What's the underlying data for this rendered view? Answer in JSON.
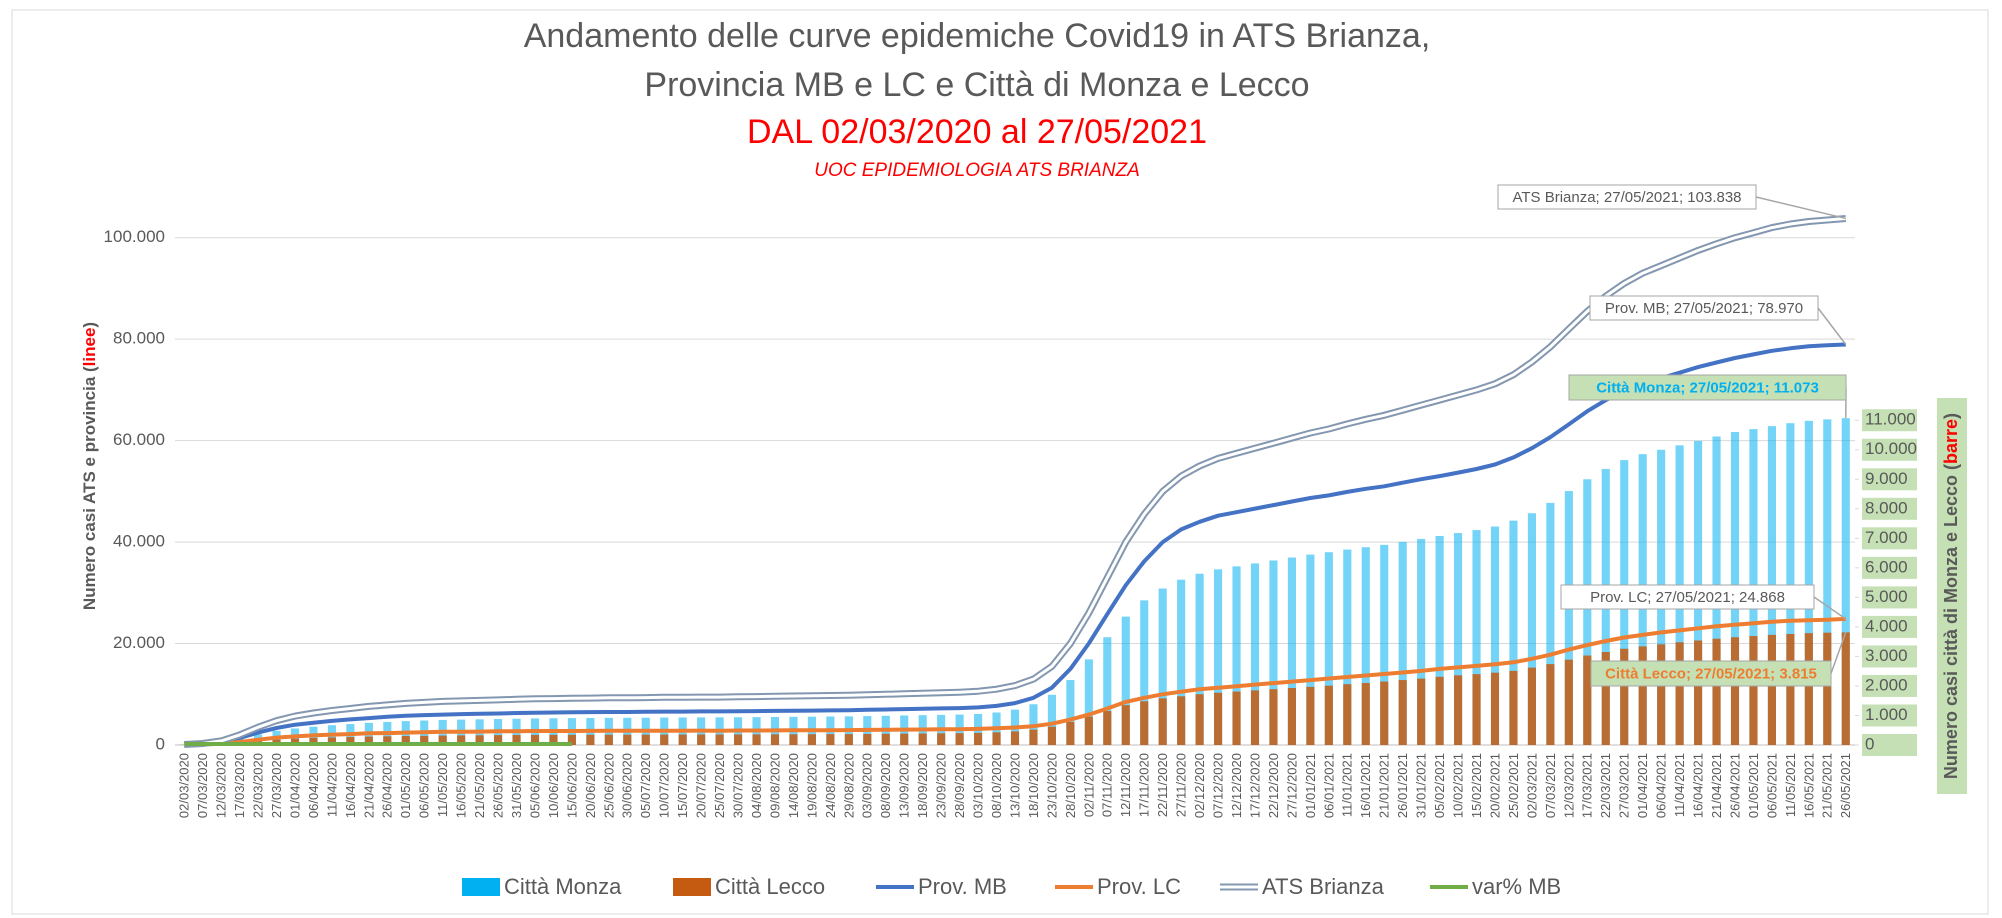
{
  "chart_data": {
    "type": "combo",
    "title": "Andamento delle curve epidemiche Covid19 in ATS Brianza,",
    "title_line2": "Provincia MB e LC e Città di Monza e Lecco",
    "subtitle": "DAL 02/03/2020 al 27/05/2021",
    "note": "UOC EPIDEMIOLOGIA ATS BRIANZA",
    "y_label": [
      "Numero casi ATS e  provincia (",
      "linee",
      ")"
    ],
    "y2_label": [
      "Numero casi città di Monza e Lecco (",
      "barre",
      ")"
    ],
    "categories": [
      "02/03/2020",
      "07/03/2020",
      "12/03/2020",
      "17/03/2020",
      "22/03/2020",
      "27/03/2020",
      "01/04/2020",
      "06/04/2020",
      "11/04/2020",
      "16/04/2020",
      "21/04/2020",
      "26/04/2020",
      "01/05/2020",
      "06/05/2020",
      "11/05/2020",
      "16/05/2020",
      "21/05/2020",
      "26/05/2020",
      "31/05/2020",
      "05/06/2020",
      "10/06/2020",
      "15/06/2020",
      "20/06/2020",
      "25/06/2020",
      "30/06/2020",
      "05/07/2020",
      "10/07/2020",
      "15/07/2020",
      "20/07/2020",
      "25/07/2020",
      "30/07/2020",
      "04/08/2020",
      "09/08/2020",
      "14/08/2020",
      "19/08/2020",
      "24/08/2020",
      "29/08/2020",
      "03/09/2020",
      "08/09/2020",
      "13/09/2020",
      "18/09/2020",
      "23/09/2020",
      "28/09/2020",
      "03/10/2020",
      "08/10/2020",
      "13/10/2020",
      "18/10/2020",
      "23/10/2020",
      "28/10/2020",
      "02/11/2020",
      "07/11/2020",
      "12/11/2020",
      "17/11/2020",
      "22/11/2020",
      "27/11/2020",
      "02/12/2020",
      "07/12/2020",
      "12/12/2020",
      "17/12/2020",
      "22/12/2020",
      "27/12/2020",
      "01/01/2021",
      "06/01/2021",
      "11/01/2021",
      "16/01/2021",
      "21/01/2021",
      "26/01/2021",
      "31/01/2021",
      "05/02/2021",
      "10/02/2021",
      "15/02/2021",
      "20/02/2021",
      "25/02/2021",
      "02/03/2021",
      "07/03/2021",
      "12/03/2021",
      "17/03/2021",
      "22/03/2021",
      "27/03/2021",
      "01/04/2021",
      "06/04/2021",
      "11/04/2021",
      "16/04/2021",
      "21/04/2021",
      "26/04/2021",
      "01/05/2021",
      "06/05/2021",
      "11/05/2021",
      "16/05/2021",
      "21/05/2021",
      "26/05/2021"
    ],
    "series": [
      {
        "name": "Città Monza",
        "type": "bar",
        "axis": "y2",
        "color": "#00b0f0",
        "values": [
          10,
          30,
          80,
          200,
          360,
          480,
          560,
          620,
          670,
          710,
          750,
          780,
          810,
          830,
          850,
          860,
          870,
          880,
          890,
          900,
          905,
          910,
          915,
          920,
          922,
          925,
          930,
          932,
          935,
          937,
          940,
          945,
          950,
          955,
          960,
          965,
          970,
          980,
          990,
          1000,
          1010,
          1020,
          1030,
          1050,
          1100,
          1200,
          1380,
          1700,
          2200,
          2900,
          3650,
          4350,
          4900,
          5300,
          5600,
          5800,
          5950,
          6050,
          6150,
          6250,
          6350,
          6450,
          6530,
          6620,
          6700,
          6780,
          6880,
          6980,
          7080,
          7180,
          7280,
          7400,
          7600,
          7850,
          8200,
          8600,
          9000,
          9350,
          9650,
          9850,
          10000,
          10150,
          10300,
          10450,
          10600,
          10700,
          10800,
          10900,
          10980,
          11030,
          11070
        ]
      },
      {
        "name": "Città Lecco",
        "type": "bar",
        "axis": "y2",
        "color": "#c55a11",
        "values": [
          5,
          12,
          30,
          75,
          130,
          180,
          215,
          240,
          255,
          270,
          285,
          295,
          305,
          310,
          320,
          325,
          330,
          335,
          340,
          342,
          344,
          346,
          348,
          350,
          351,
          352,
          354,
          355,
          356,
          357,
          358,
          360,
          362,
          364,
          366,
          368,
          370,
          375,
          380,
          385,
          390,
          395,
          400,
          410,
          430,
          460,
          520,
          620,
          780,
          960,
          1150,
          1350,
          1480,
          1580,
          1650,
          1720,
          1770,
          1810,
          1850,
          1890,
          1930,
          1970,
          2010,
          2060,
          2100,
          2150,
          2200,
          2250,
          2310,
          2360,
          2400,
          2450,
          2510,
          2620,
          2740,
          2890,
          3030,
          3150,
          3260,
          3340,
          3410,
          3480,
          3540,
          3600,
          3650,
          3690,
          3730,
          3760,
          3790,
          3805,
          3815
        ]
      },
      {
        "name": "Prov. MB",
        "type": "line",
        "color": "#4472c4",
        "values": [
          70,
          210,
          560,
          1400,
          2450,
          3350,
          4000,
          4400,
          4750,
          5050,
          5300,
          5550,
          5750,
          5900,
          6000,
          6100,
          6150,
          6200,
          6300,
          6350,
          6400,
          6450,
          6480,
          6500,
          6510,
          6540,
          6580,
          6590,
          6620,
          6630,
          6650,
          6690,
          6720,
          6760,
          6790,
          6830,
          6860,
          6930,
          7000,
          7070,
          7140,
          7210,
          7280,
          7420,
          7700,
          8250,
          9300,
          11300,
          15000,
          20000,
          25800,
          31500,
          36200,
          40000,
          42500,
          44000,
          45200,
          45900,
          46600,
          47300,
          48000,
          48700,
          49200,
          49900,
          50500,
          51000,
          51700,
          52400,
          53000,
          53700,
          54400,
          55300,
          56700,
          58500,
          60700,
          63200,
          65800,
          68000,
          69800,
          71300,
          72300,
          73400,
          74500,
          75400,
          76300,
          77000,
          77700,
          78200,
          78600,
          78800,
          78950
        ]
      },
      {
        "name": "Prov. LC",
        "type": "line",
        "color": "#ed7d31",
        "values": [
          30,
          90,
          240,
          600,
          1050,
          1450,
          1700,
          1900,
          2050,
          2150,
          2300,
          2350,
          2450,
          2500,
          2600,
          2600,
          2650,
          2700,
          2700,
          2750,
          2750,
          2750,
          2770,
          2800,
          2790,
          2810,
          2820,
          2810,
          2830,
          2820,
          2850,
          2860,
          2880,
          2890,
          2910,
          2920,
          2940,
          2970,
          3000,
          3030,
          3060,
          3090,
          3120,
          3180,
          3300,
          3450,
          3700,
          4200,
          5000,
          6000,
          7200,
          8500,
          9300,
          10000,
          10500,
          11000,
          11300,
          11600,
          11900,
          12200,
          12500,
          12800,
          13100,
          13400,
          13700,
          14000,
          14300,
          14600,
          15000,
          15300,
          15600,
          15900,
          16300,
          17000,
          17800,
          18800,
          19700,
          20500,
          21200,
          21700,
          22200,
          22600,
          23000,
          23400,
          23700,
          24000,
          24300,
          24500,
          24600,
          24700,
          24850
        ]
      },
      {
        "name": "ATS Brianza",
        "type": "line",
        "style": "double",
        "color": "#8497b0",
        "values": [
          100,
          300,
          800,
          2000,
          3500,
          4800,
          5700,
          6300,
          6800,
          7200,
          7600,
          7900,
          8200,
          8400,
          8600,
          8700,
          8800,
          8900,
          9000,
          9100,
          9150,
          9200,
          9250,
          9300,
          9300,
          9350,
          9400,
          9400,
          9450,
          9450,
          9500,
          9550,
          9600,
          9650,
          9700,
          9750,
          9800,
          9900,
          10000,
          10100,
          10200,
          10300,
          10400,
          10600,
          11000,
          11700,
          13000,
          15500,
          20000,
          26000,
          33000,
          40000,
          45500,
          50000,
          53000,
          55000,
          56500,
          57500,
          58500,
          59500,
          60500,
          61500,
          62300,
          63300,
          64200,
          65000,
          66000,
          67000,
          68000,
          69000,
          70000,
          71200,
          73000,
          75500,
          78500,
          82000,
          85500,
          88500,
          91000,
          93000,
          94500,
          96000,
          97500,
          98800,
          100000,
          101000,
          102000,
          102700,
          103200,
          103500,
          103800
        ]
      },
      {
        "name": "var% MB",
        "type": "line",
        "color": "#70ad47",
        "values": [
          200,
          200,
          200,
          200,
          200,
          200,
          200,
          200,
          200,
          200,
          200,
          200,
          200,
          200,
          200,
          200,
          200,
          200,
          200,
          200,
          200,
          200,
          null,
          null,
          null,
          null,
          null,
          null,
          null,
          null,
          null,
          null,
          null,
          null,
          null,
          null,
          null,
          null,
          null,
          null,
          null,
          null,
          null,
          null,
          null,
          null,
          null,
          null,
          null,
          null,
          null,
          null,
          null,
          null,
          null,
          null,
          null,
          null,
          null,
          null,
          null,
          null,
          null,
          null,
          null,
          null,
          null,
          null,
          null,
          null,
          null,
          null,
          null,
          null,
          null,
          null,
          null,
          null,
          null,
          null,
          null,
          null,
          null,
          null,
          null,
          null,
          null,
          null,
          null,
          null,
          null
        ]
      }
    ],
    "annotations": [
      "ATS Brianza; 27/05/2021; 103.838",
      "Prov. MB; 27/05/2021; 78.970",
      "Città Monza; 27/05/2021; 11.073",
      "Prov. LC; 27/05/2021; 24.868",
      "Città Lecco; 27/05/2021; 3.815"
    ],
    "ylim": [
      0,
      110000
    ],
    "yticks": [
      0,
      {
        "value": 20000,
        "label": "20.000"
      },
      {
        "value": 40000,
        "label": "40.000"
      },
      {
        "value": 60000,
        "label": "60.000"
      },
      {
        "value": 80000,
        "label": "80.000"
      },
      {
        "value": 100000,
        "label": "100.000"
      }
    ],
    "y2lim": [
      0,
      18900
    ],
    "y2ticks": [
      0,
      {
        "value": 1000,
        "label": "1.000"
      },
      {
        "value": 2000,
        "label": "2.000"
      },
      {
        "value": 3000,
        "label": "3.000"
      },
      {
        "value": 4000,
        "label": "4.000"
      },
      {
        "value": 5000,
        "label": "5.000"
      },
      {
        "value": 6000,
        "label": "6.000"
      },
      {
        "value": 7000,
        "label": "7.000"
      },
      {
        "value": 8000,
        "label": "8.000"
      },
      {
        "value": 9000,
        "label": "9.000"
      },
      {
        "value": 10000,
        "label": "10.000"
      },
      {
        "value": 11000,
        "label": "11.000"
      }
    ],
    "grid": true,
    "legend": "bottom"
  }
}
